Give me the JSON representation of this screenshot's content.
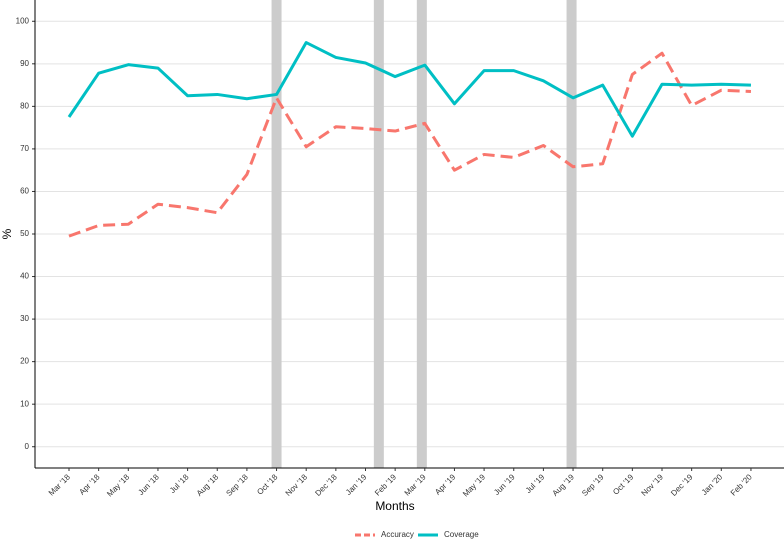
{
  "chart_data": {
    "type": "line",
    "x_label": "Months",
    "y_label": "%",
    "categories": [
      "Mar '18",
      "Apr '18",
      "May '18",
      "Jun '18",
      "Jul '18",
      "Aug '18",
      "Sep '18",
      "Oct '18",
      "Nov '18",
      "Dec '18",
      "Jan '19",
      "Feb '19",
      "Mar '19",
      "Apr '19",
      "May '19",
      "Jun '19",
      "Jul '19",
      "Aug '19",
      "Sep '19",
      "Oct '19",
      "Nov '19",
      "Dec '19",
      "Jan '20",
      "Feb '20"
    ],
    "series": [
      {
        "name": "Accuracy",
        "color": "#f8766d",
        "dashed": true,
        "values": [
          49.5,
          52,
          52.3,
          57,
          56.2,
          55,
          64,
          82,
          70.5,
          75.2,
          74.8,
          74.2,
          76,
          65,
          68.7,
          68,
          70.8,
          65.8,
          66.5,
          87.5,
          92.5,
          80.2,
          83.8,
          83.5
        ]
      },
      {
        "name": "Coverage",
        "color": "#00bfc4",
        "dashed": false,
        "values": [
          77.5,
          87.8,
          89.8,
          89,
          82.5,
          82.8,
          81.8,
          82.8,
          95,
          91.5,
          90.2,
          87,
          89.7,
          80.6,
          88.4,
          88.4,
          86,
          82,
          85,
          73,
          85.2,
          85,
          85.2,
          85
        ]
      }
    ],
    "vertical_bands": [
      7,
      10.45,
      11.9,
      16.95
    ],
    "band_color": "#cccccc",
    "ylim": [
      -5,
      105
    ],
    "yticks": [
      0,
      10,
      20,
      30,
      40,
      50,
      60,
      70,
      80,
      90,
      100
    ],
    "grid": true,
    "legend": "bottom"
  }
}
